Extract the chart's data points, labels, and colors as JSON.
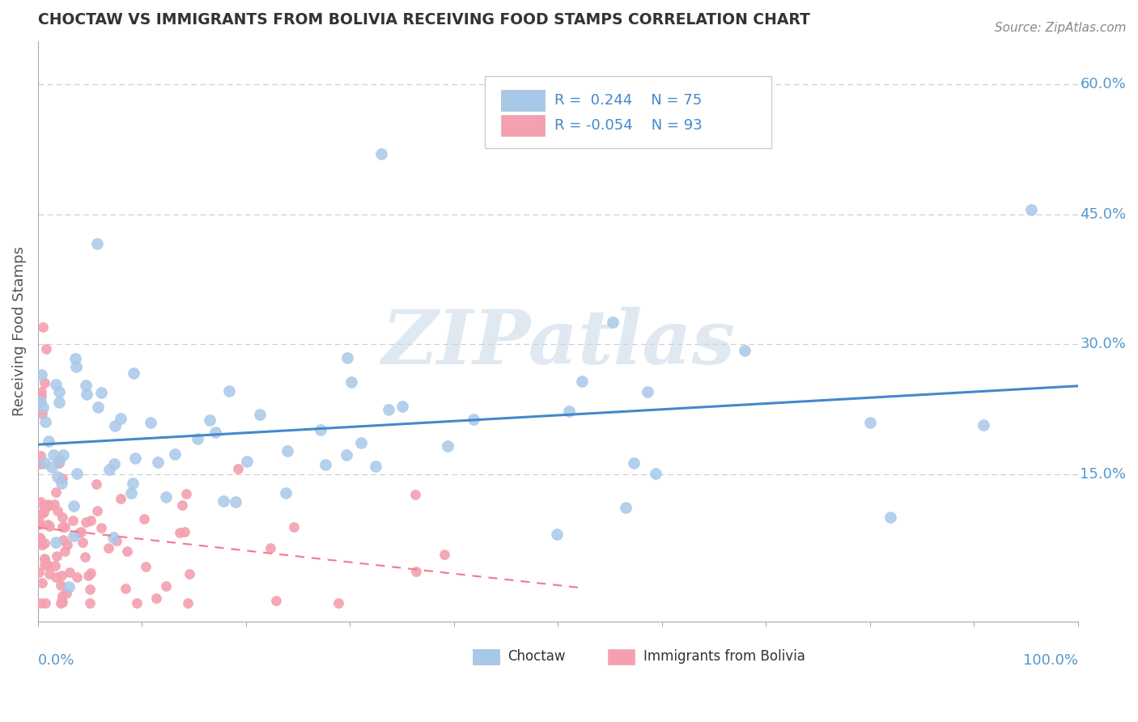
{
  "title": "CHOCTAW VS IMMIGRANTS FROM BOLIVIA RECEIVING FOOD STAMPS CORRELATION CHART",
  "source_text": "Source: ZipAtlas.com",
  "xmin": 0.0,
  "xmax": 1.0,
  "ymin": -0.02,
  "ymax": 0.65,
  "choctaw_color": "#a8c8e8",
  "bolivia_color": "#f4a0b0",
  "choctaw_line_color": "#4488cc",
  "bolivia_line_color": "#f08090",
  "legend_r_choctaw": "R =  0.244",
  "legend_n_choctaw": "N = 75",
  "legend_r_bolivia": "R = -0.054",
  "legend_n_bolivia": "N = 93",
  "watermark": "ZIPatlas",
  "watermark_color": "#c8d8e8",
  "choctaw_R": 0.244,
  "choctaw_N": 75,
  "bolivia_R": -0.054,
  "bolivia_N": 93,
  "background_color": "#ffffff",
  "grid_color": "#cccccc",
  "tick_color": "#5599cc",
  "title_color": "#333333",
  "ylabel": "Receiving Food Stamps"
}
